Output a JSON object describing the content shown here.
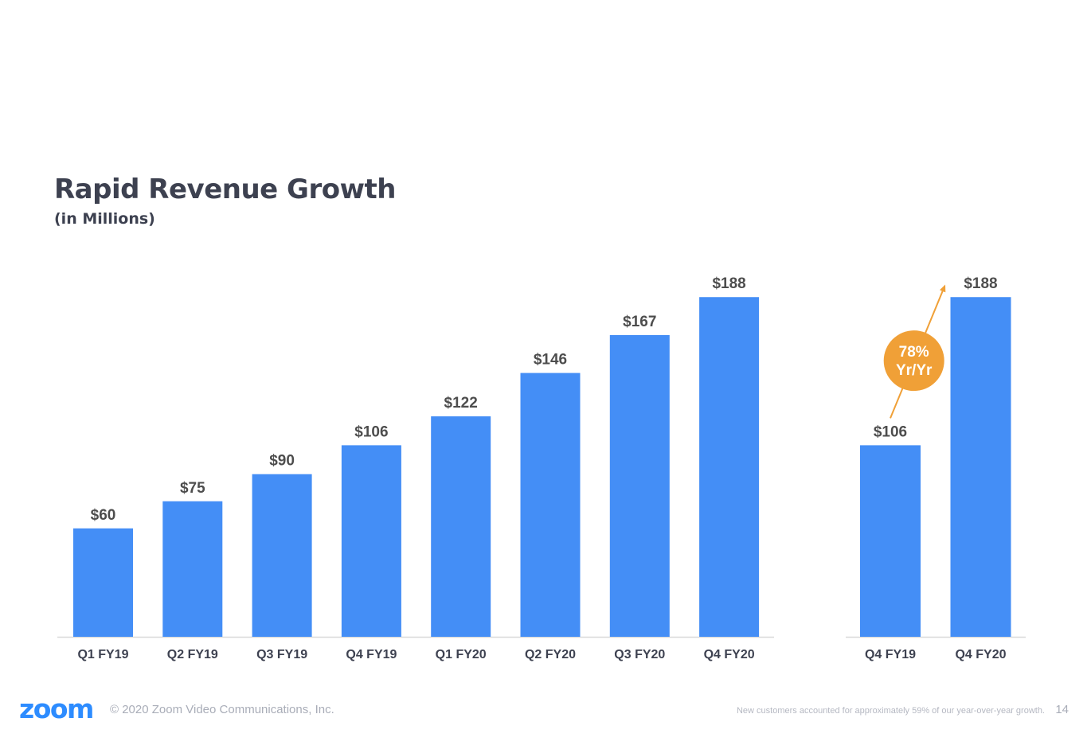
{
  "title": "Rapid Revenue Growth",
  "subtitle": "(in Millions)",
  "footer": {
    "logo": "zoom",
    "copyright": "© 2020 Zoom Video Communications, Inc.",
    "note": "New customers accounted for approximately 59% of our year-over-year growth.",
    "page_number": "14"
  },
  "colors": {
    "bar": "#448ef6",
    "badge": "#f0a037",
    "text": "#3d4150",
    "label": "#4d4d4d",
    "axis": "#d9d9d9"
  },
  "chart_data": [
    {
      "type": "bar",
      "categories": [
        "Q1 FY19",
        "Q2 FY19",
        "Q3 FY19",
        "Q4 FY19",
        "Q1 FY20",
        "Q2 FY20",
        "Q3 FY20",
        "Q4 FY20"
      ],
      "values": [
        60,
        75,
        90,
        106,
        122,
        146,
        167,
        188
      ],
      "data_labels": [
        "$60",
        "$75",
        "$90",
        "$106",
        "$122",
        "$146",
        "$167",
        "$188"
      ],
      "title": "Rapid Revenue Growth",
      "subtitle": "(in Millions)"
    },
    {
      "type": "bar",
      "categories": [
        "Q4 FY19",
        "Q4 FY20"
      ],
      "values": [
        106,
        188
      ],
      "data_labels": [
        "$106",
        "$188"
      ],
      "annotation": {
        "line1": "78%",
        "line2": "Yr/Yr"
      }
    }
  ]
}
